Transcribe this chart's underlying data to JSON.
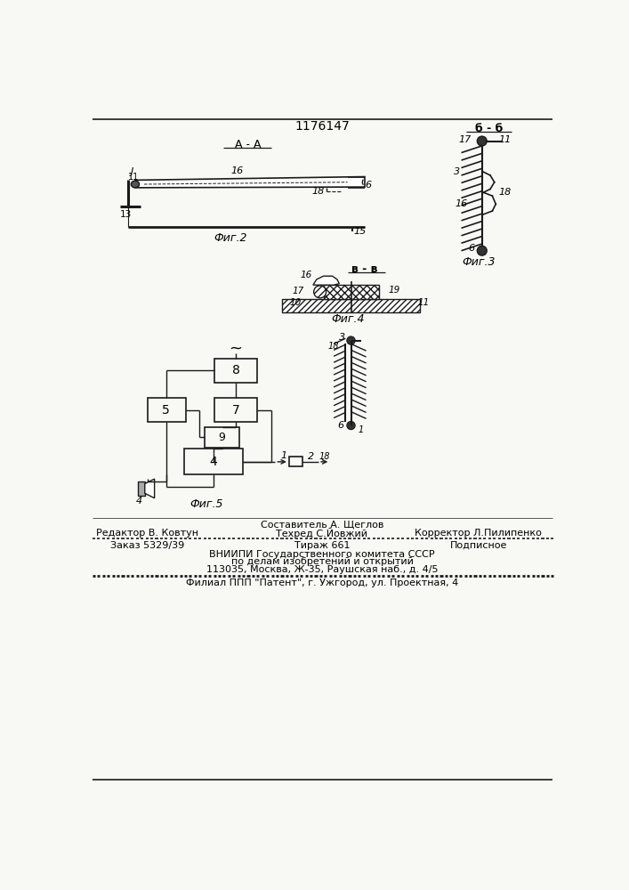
{
  "patent_number": "1176147",
  "bg_color": "#f8f8f5",
  "line_color": "#1a1a1a",
  "fig2_label": "А - А",
  "fig3_label": "б - б",
  "fig4_label": "в - в",
  "fig2_caption": "Фиг.2",
  "fig3_caption": "Фиг.3",
  "fig4_caption": "Фиг.4",
  "fig5_caption": "Фиг.5",
  "footer_line0": "Составитель А. Щеглов",
  "footer_line1_left": "Редактор В. Ковтун",
  "footer_line1_center": "Техред С.Йовжий",
  "footer_line1_right": "Корректор Л.Пилипенко",
  "footer_line2_left": "Заказ 5329/39",
  "footer_line2_center": "Тираж 661",
  "footer_line2_right": "Подписное",
  "footer_line3": "ВНИИПИ Государственного комитета СССР",
  "footer_line4": "по делам изобретений и открытий",
  "footer_line5": "113035, Москва, Ж-35, Раушская наб., д. 4/5",
  "footer_line6": "Филиал ППП \"Патент\", г. Ужгород, ул. Проектная, 4"
}
